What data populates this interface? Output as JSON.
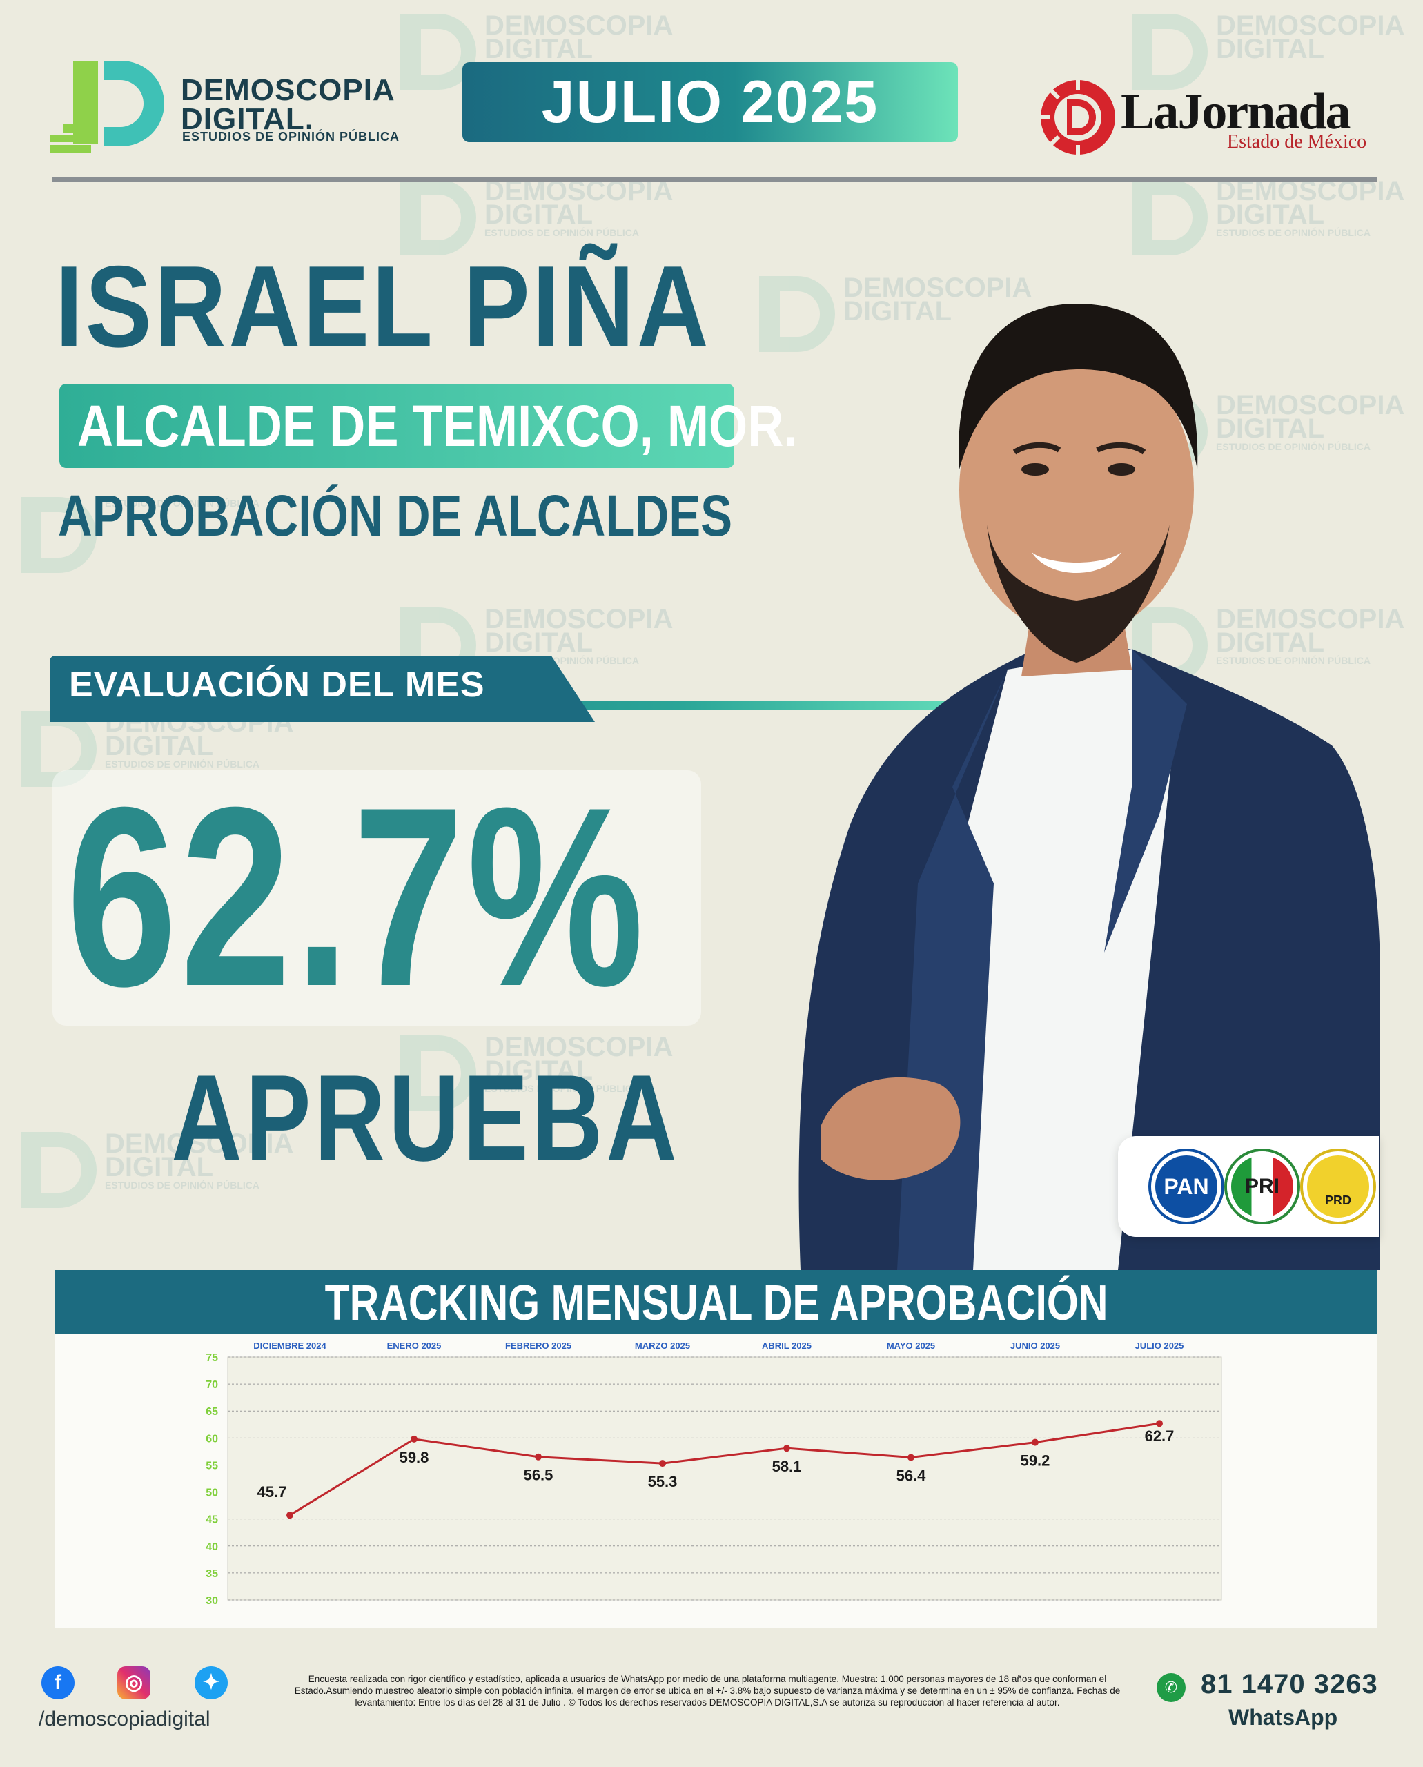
{
  "header": {
    "brand_name_1": "DEMOSCOPIA",
    "brand_name_2": "DIGITAL.",
    "brand_tagline": "ESTUDIOS DE OPINIÓN PÚBLICA",
    "month": "JULIO 2025",
    "newspaper_name": "LaJornada",
    "newspaper_region": "Estado de México"
  },
  "watermark": {
    "line1": "DEMOSCOPIA",
    "line2": "DIGITAL",
    "line3": "ESTUDIOS DE OPINIÓN PÚBLICA"
  },
  "subject": {
    "name": "ISRAEL PIÑA",
    "role": "ALCALDE DE TEMIXCO, MOR.",
    "section": "APROBACIÓN DE ALCALDES"
  },
  "evaluation": {
    "label": "EVALUACIÓN DEL MES",
    "value": "62.7%",
    "verdict": "APRUEBA"
  },
  "parties": [
    "PAN",
    "PRI",
    "PRD"
  ],
  "tracking": {
    "title": "TRACKING MENSUAL DE APROBACIÓN"
  },
  "chart_data": {
    "type": "line",
    "title": "TRACKING MENSUAL DE APROBACIÓN",
    "categories": [
      "DICIEMBRE 2024",
      "ENERO 2025",
      "FEBRERO 2025",
      "MARZO 2025",
      "ABRIL 2025",
      "MAYO 2025",
      "JUNIO 2025",
      "JULIO 2025"
    ],
    "values": [
      45.7,
      59.8,
      56.5,
      55.3,
      58.1,
      56.4,
      59.2,
      62.7
    ],
    "data_labels": [
      "45.7",
      "59.8",
      "56.5",
      "55.3",
      "58.1",
      "56.4",
      "59.2",
      "62.7"
    ],
    "ylim": [
      30,
      75
    ],
    "yticks": [
      "75",
      "70",
      "65",
      "60",
      "55",
      "50",
      "45",
      "40",
      "35",
      "30"
    ],
    "grid": true,
    "line_color": "#c0272d",
    "tick_color": "#7fcf3a",
    "category_color": "#2a5fc0"
  },
  "footer": {
    "handle": "/demoscopiadigital",
    "disclaimer": "Encuesta realizada con rigor científico y estadístico, aplicada a usuarios de WhatsApp por medio de una plataforma multiagente. Muestra: 1,000 personas mayores de 18 años que conforman el Estado.Asumiendo muestreo aleatorio simple con población infinita, el margen de error se ubica en el +/- 3.8% bajo supuesto de varianza máxima y se determina en un ± 95% de confianza. Fechas de levantamiento: Entre los días del 28 al 31 de Julio . © Todos los derechos reservados DEMOSCOPIA DIGITAL,S.A se autoriza su reproducción al hacer referencia al autor.",
    "phone": "81 1470 3263",
    "whatsapp_label": "WhatsApp"
  },
  "colors": {
    "primary": "#1c6076",
    "accent": "#2a8a8a",
    "mint": "#5dd7b4",
    "background": "#ecebdf"
  }
}
